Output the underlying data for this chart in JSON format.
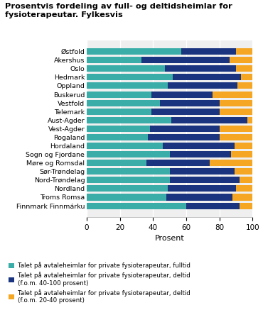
{
  "title": "Prosentvis fordeling av full- og deltidsheimlar for\nfysioterapeutar. Fylkesvis",
  "xlabel": "Prosent",
  "categories": [
    "Finnmark Finnmárku",
    "Troms Romsa",
    "Nordland",
    "Nord-Trøndelag",
    "Sør-Trøndelag",
    "Møre og Romsdal",
    "Sogn og Fjordane",
    "Hordaland",
    "Rogaland",
    "Vest-Agder",
    "Aust-Agder",
    "Telemark",
    "Vestfold",
    "Buskerud",
    "Oppland",
    "Hedmark",
    "Oslo",
    "Akershus",
    "Østfold"
  ],
  "fulltid": [
    60,
    48,
    49,
    50,
    50,
    36,
    50,
    46,
    37,
    38,
    51,
    39,
    44,
    39,
    49,
    52,
    47,
    33,
    57
  ],
  "deltid_40_100": [
    32,
    40,
    41,
    42,
    39,
    38,
    37,
    43,
    43,
    42,
    46,
    41,
    36,
    37,
    42,
    41,
    43,
    53,
    33
  ],
  "deltid_20_40": [
    8,
    12,
    10,
    8,
    11,
    26,
    13,
    11,
    20,
    20,
    3,
    20,
    20,
    24,
    9,
    7,
    10,
    14,
    10
  ],
  "color_fulltid": "#3aada8",
  "color_deltid_40_100": "#1a3480",
  "color_deltid_20_40": "#f5a623",
  "legend_fulltid": "Talet på avtaleheimlar for private fysioterapeutar, fulltid",
  "legend_deltid_40_100": "Talet på avtaleheimlar for private fysioterapeutar, deltid\n(f.o.m. 40-100 prosent)",
  "legend_deltid_20_40": "Talet på avtaleheimlar for private fysioterapeutar, deltid\n(f.o.m. 20-40 prosent)",
  "xlim": [
    0,
    100
  ],
  "xticks": [
    0,
    20,
    40,
    60,
    80,
    100
  ],
  "background_color": "#efefef"
}
